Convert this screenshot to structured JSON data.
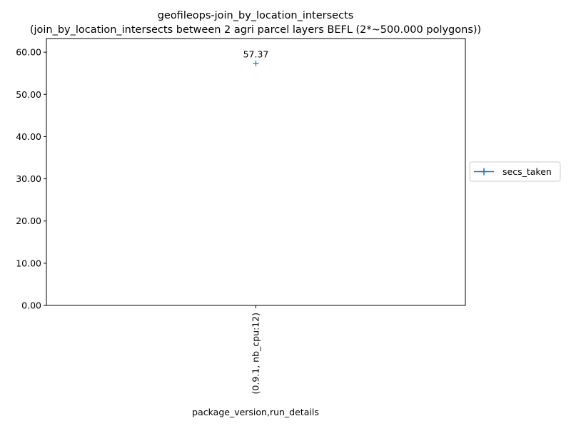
{
  "chart_data": {
    "type": "line",
    "title": "geofileops-join_by_location_intersects",
    "subtitle": "(join_by_location_intersects between 2 agri parcel layers BEFL (2*~500.000 polygons))",
    "xlabel": "package_version,run_details",
    "ylabel": "",
    "categories": [
      "(0.9.1, nb_cpu:12)"
    ],
    "series": [
      {
        "name": "secs_taken",
        "values": [
          57.37
        ],
        "color": "#1f77b4",
        "marker": "plus"
      }
    ],
    "data_labels": [
      "57.37"
    ],
    "ylim": [
      0,
      63.24
    ],
    "yticks": [
      0,
      10,
      20,
      30,
      40,
      50,
      60
    ],
    "ytick_labels": [
      "0.00",
      "10.00",
      "20.00",
      "30.00",
      "40.00",
      "50.00",
      "60.00"
    ],
    "grid": false,
    "legend_position": "right, outside plot area, vertically centered"
  }
}
